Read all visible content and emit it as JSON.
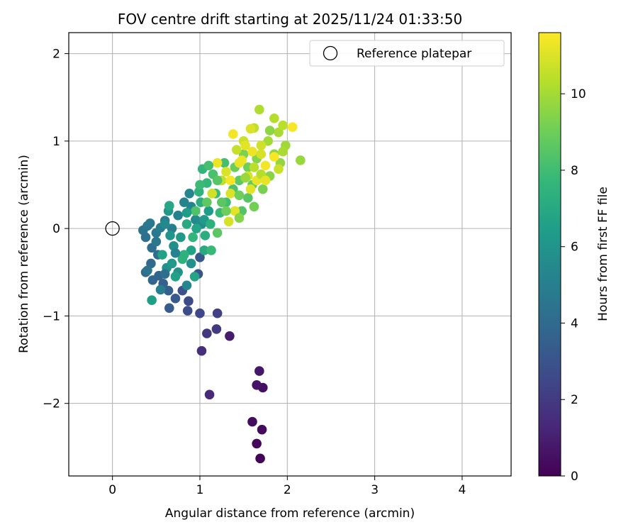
{
  "chart_data": {
    "type": "scatter",
    "title": "FOV centre drift starting at 2025/11/24 01:33:50",
    "xlabel": "Angular distance from reference (arcmin)",
    "ylabel": "Rotation from reference (arcmin)",
    "xlim": [
      -0.5,
      4.56
    ],
    "ylim": [
      -2.83,
      2.24
    ],
    "xticks": [
      0,
      1,
      2,
      3,
      4
    ],
    "yticks": [
      -2,
      -1,
      0,
      1,
      2
    ],
    "grid": true,
    "legend": {
      "position": "top-right",
      "entries": [
        "Reference platepar"
      ]
    },
    "reference_point": {
      "x": 0,
      "y": 0,
      "label": "Reference platepar"
    },
    "colorbar": {
      "label": "Hours from first FF file",
      "colormap": "viridis",
      "min": 0,
      "max": 11.6,
      "ticks": [
        0,
        2,
        4,
        6,
        8,
        10
      ]
    },
    "points": [
      {
        "x": 1.69,
        "y": -2.63,
        "t": 0.1
      },
      {
        "x": 1.65,
        "y": -2.46,
        "t": 0.2
      },
      {
        "x": 1.71,
        "y": -2.3,
        "t": 0.3
      },
      {
        "x": 1.6,
        "y": -2.21,
        "t": 0.4
      },
      {
        "x": 1.72,
        "y": -1.82,
        "t": 0.5
      },
      {
        "x": 1.65,
        "y": -1.79,
        "t": 0.6
      },
      {
        "x": 1.68,
        "y": -1.63,
        "t": 0.7
      },
      {
        "x": 1.34,
        "y": -1.23,
        "t": 0.9
      },
      {
        "x": 1.11,
        "y": -1.9,
        "t": 1.4
      },
      {
        "x": 1.02,
        "y": -1.4,
        "t": 1.6
      },
      {
        "x": 1.08,
        "y": -1.2,
        "t": 1.9
      },
      {
        "x": 1.19,
        "y": -1.15,
        "t": 2.0
      },
      {
        "x": 1.2,
        "y": -0.97,
        "t": 2.2
      },
      {
        "x": 1.0,
        "y": -0.97,
        "t": 2.5
      },
      {
        "x": 0.87,
        "y": -0.83,
        "t": 2.6
      },
      {
        "x": 0.86,
        "y": -0.94,
        "t": 2.7
      },
      {
        "x": 0.8,
        "y": -0.71,
        "t": 2.9
      },
      {
        "x": 0.98,
        "y": -0.52,
        "t": 3.0
      },
      {
        "x": 1.0,
        "y": -0.33,
        "t": 3.2
      },
      {
        "x": 0.72,
        "y": -0.8,
        "t": 3.3
      },
      {
        "x": 0.65,
        "y": -0.91,
        "t": 3.4
      },
      {
        "x": 0.64,
        "y": -0.71,
        "t": 3.5
      },
      {
        "x": 0.58,
        "y": -0.63,
        "t": 3.6
      },
      {
        "x": 0.53,
        "y": -0.54,
        "t": 3.7
      },
      {
        "x": 0.46,
        "y": -0.59,
        "t": 3.8
      },
      {
        "x": 0.38,
        "y": -0.5,
        "t": 3.9
      },
      {
        "x": 0.44,
        "y": -0.4,
        "t": 4.0
      },
      {
        "x": 0.52,
        "y": -0.3,
        "t": 4.1
      },
      {
        "x": 0.45,
        "y": -0.22,
        "t": 4.2
      },
      {
        "x": 0.38,
        "y": -0.1,
        "t": 4.3
      },
      {
        "x": 0.35,
        "y": -0.02,
        "t": 4.4
      },
      {
        "x": 0.4,
        "y": 0.03,
        "t": 4.5
      },
      {
        "x": 0.43,
        "y": 0.06,
        "t": 4.6
      },
      {
        "x": 0.5,
        "y": -0.05,
        "t": 4.7
      },
      {
        "x": 0.55,
        "y": 0.01,
        "t": 4.8
      },
      {
        "x": 0.6,
        "y": 0.09,
        "t": 4.9
      },
      {
        "x": 0.68,
        "y": 0.0,
        "t": 5.0
      },
      {
        "x": 0.75,
        "y": 0.15,
        "t": 5.1
      },
      {
        "x": 0.82,
        "y": 0.3,
        "t": 5.2
      },
      {
        "x": 0.9,
        "y": 0.25,
        "t": 5.3
      },
      {
        "x": 0.88,
        "y": 0.4,
        "t": 5.4
      },
      {
        "x": 0.95,
        "y": 0.1,
        "t": 5.5
      },
      {
        "x": 1.02,
        "y": 0.05,
        "t": 5.6
      },
      {
        "x": 0.7,
        "y": -0.2,
        "t": 5.7
      },
      {
        "x": 0.62,
        "y": -0.45,
        "t": 5.8
      },
      {
        "x": 0.75,
        "y": -0.5,
        "t": 5.9
      },
      {
        "x": 0.66,
        "y": -0.08,
        "t": 6.0
      },
      {
        "x": 0.64,
        "y": 0.2,
        "t": 6.1
      },
      {
        "x": 0.78,
        "y": -0.1,
        "t": 6.2
      },
      {
        "x": 1.05,
        "y": 0.1,
        "t": 6.3
      },
      {
        "x": 1.1,
        "y": 0.2,
        "t": 6.4
      },
      {
        "x": 0.45,
        "y": -0.82,
        "t": 6.5
      },
      {
        "x": 0.57,
        "y": -0.3,
        "t": 6.6
      },
      {
        "x": 0.9,
        "y": -0.25,
        "t": 6.7
      },
      {
        "x": 0.94,
        "y": -0.55,
        "t": 6.8
      },
      {
        "x": 0.65,
        "y": 0.26,
        "t": 6.9
      },
      {
        "x": 0.85,
        "y": 0.05,
        "t": 7.0
      },
      {
        "x": 1.05,
        "y": -0.25,
        "t": 7.0
      },
      {
        "x": 1.01,
        "y": 0.3,
        "t": 7.2
      },
      {
        "x": 1.12,
        "y": 0.05,
        "t": 7.3
      },
      {
        "x": 0.82,
        "y": -0.3,
        "t": 7.4
      },
      {
        "x": 0.99,
        "y": 0.42,
        "t": 7.5
      },
      {
        "x": 1.03,
        "y": 0.68,
        "t": 7.6
      },
      {
        "x": 1.08,
        "y": 0.52,
        "t": 7.7
      },
      {
        "x": 1.23,
        "y": 0.18,
        "t": 7.8
      },
      {
        "x": 1.18,
        "y": 0.4,
        "t": 7.9
      },
      {
        "x": 1.3,
        "y": 0.3,
        "t": 8.0
      },
      {
        "x": 1.28,
        "y": 0.75,
        "t": 8.1
      },
      {
        "x": 1.15,
        "y": 0.62,
        "t": 8.2
      },
      {
        "x": 1.38,
        "y": 0.45,
        "t": 8.3
      },
      {
        "x": 1.48,
        "y": 0.2,
        "t": 8.4
      },
      {
        "x": 1.55,
        "y": 0.35,
        "t": 8.5
      },
      {
        "x": 1.2,
        "y": -0.05,
        "t": 8.6
      },
      {
        "x": 1.45,
        "y": 0.55,
        "t": 8.7
      },
      {
        "x": 1.6,
        "y": 0.5,
        "t": 8.8
      },
      {
        "x": 1.4,
        "y": 0.7,
        "t": 8.9
      },
      {
        "x": 1.55,
        "y": 0.7,
        "t": 9.0
      },
      {
        "x": 1.62,
        "y": 0.25,
        "t": 9.1
      },
      {
        "x": 1.72,
        "y": 0.45,
        "t": 9.2
      },
      {
        "x": 1.5,
        "y": 0.85,
        "t": 9.3
      },
      {
        "x": 1.65,
        "y": 0.8,
        "t": 9.4
      },
      {
        "x": 1.8,
        "y": 0.6,
        "t": 9.5
      },
      {
        "x": 1.85,
        "y": 0.85,
        "t": 9.6
      },
      {
        "x": 1.92,
        "y": 0.75,
        "t": 9.7
      },
      {
        "x": 2.15,
        "y": 0.78,
        "t": 9.8
      },
      {
        "x": 1.98,
        "y": 0.95,
        "t": 9.9
      },
      {
        "x": 1.78,
        "y": 1.0,
        "t": 10.0
      },
      {
        "x": 1.9,
        "y": 1.1,
        "t": 10.1
      },
      {
        "x": 1.68,
        "y": 1.36,
        "t": 10.2
      },
      {
        "x": 1.85,
        "y": 1.26,
        "t": 10.3
      },
      {
        "x": 1.95,
        "y": 1.18,
        "t": 10.4
      },
      {
        "x": 1.62,
        "y": 1.15,
        "t": 10.5
      },
      {
        "x": 1.42,
        "y": 0.9,
        "t": 10.6
      },
      {
        "x": 1.5,
        "y": 1.0,
        "t": 10.7
      },
      {
        "x": 1.7,
        "y": 0.95,
        "t": 10.8
      },
      {
        "x": 1.55,
        "y": 0.6,
        "t": 10.9
      },
      {
        "x": 1.3,
        "y": 0.65,
        "t": 11.0
      },
      {
        "x": 1.35,
        "y": 0.4,
        "t": 11.0
      },
      {
        "x": 1.4,
        "y": 0.2,
        "t": 11.1
      },
      {
        "x": 1.45,
        "y": 0.75,
        "t": 11.2
      },
      {
        "x": 1.6,
        "y": 0.88,
        "t": 11.3
      },
      {
        "x": 1.75,
        "y": 0.72,
        "t": 11.4
      },
      {
        "x": 1.85,
        "y": 0.82,
        "t": 11.5
      },
      {
        "x": 2.06,
        "y": 1.16,
        "t": 11.5
      },
      {
        "x": 1.38,
        "y": 1.08,
        "t": 11.4
      },
      {
        "x": 1.2,
        "y": 0.75,
        "t": 11.3
      },
      {
        "x": 1.65,
        "y": 0.55,
        "t": 11.2
      },
      {
        "x": 1.52,
        "y": 0.95,
        "t": 11.1
      },
      {
        "x": 1.58,
        "y": 1.14,
        "t": 11.0
      },
      {
        "x": 1.33,
        "y": 0.08,
        "t": 10.9
      },
      {
        "x": 1.14,
        "y": 0.4,
        "t": 10.8
      },
      {
        "x": 1.25,
        "y": 0.55,
        "t": 10.5
      },
      {
        "x": 1.7,
        "y": 0.62,
        "t": 10.3
      },
      {
        "x": 1.95,
        "y": 0.88,
        "t": 10.1
      },
      {
        "x": 1.8,
        "y": 1.12,
        "t": 9.6
      },
      {
        "x": 1.45,
        "y": 0.12,
        "t": 9.4
      },
      {
        "x": 1.3,
        "y": 0.2,
        "t": 9.0
      },
      {
        "x": 1.08,
        "y": 0.3,
        "t": 8.7
      },
      {
        "x": 1.2,
        "y": 0.55,
        "t": 8.5
      },
      {
        "x": 0.95,
        "y": 0.2,
        "t": 8.3
      },
      {
        "x": 1.13,
        "y": -0.25,
        "t": 7.8
      },
      {
        "x": 0.92,
        "y": -0.1,
        "t": 7.6
      },
      {
        "x": 0.8,
        "y": -0.35,
        "t": 7.4
      },
      {
        "x": 0.72,
        "y": -0.55,
        "t": 6.6
      },
      {
        "x": 0.68,
        "y": -0.4,
        "t": 6.2
      },
      {
        "x": 0.9,
        "y": -0.4,
        "t": 5.8
      },
      {
        "x": 0.85,
        "y": -0.65,
        "t": 5.4
      },
      {
        "x": 0.55,
        "y": -0.7,
        "t": 4.9
      },
      {
        "x": 0.4,
        "y": -0.48,
        "t": 4.4
      },
      {
        "x": 0.6,
        "y": -0.52,
        "t": 4.2
      },
      {
        "x": 0.72,
        "y": -0.28,
        "t": 5.2
      },
      {
        "x": 0.5,
        "y": -0.15,
        "t": 4.6
      },
      {
        "x": 0.6,
        "y": 0.05,
        "t": 5.5
      },
      {
        "x": 0.85,
        "y": 0.18,
        "t": 6.4
      },
      {
        "x": 0.96,
        "y": 0.0,
        "t": 6.8
      },
      {
        "x": 1.06,
        "y": -0.08,
        "t": 7.2
      },
      {
        "x": 1.0,
        "y": 0.5,
        "t": 7.9
      },
      {
        "x": 1.1,
        "y": 0.72,
        "t": 8.1
      },
      {
        "x": 1.25,
        "y": 0.3,
        "t": 8.6
      },
      {
        "x": 1.45,
        "y": 0.38,
        "t": 9.0
      },
      {
        "x": 1.52,
        "y": 0.58,
        "t": 9.8
      },
      {
        "x": 1.62,
        "y": 0.7,
        "t": 10.4
      },
      {
        "x": 1.7,
        "y": 0.85,
        "t": 10.9
      },
      {
        "x": 1.58,
        "y": 0.45,
        "t": 11.1
      },
      {
        "x": 1.48,
        "y": 0.78,
        "t": 11.3
      },
      {
        "x": 1.35,
        "y": 0.55,
        "t": 11.5
      },
      {
        "x": 1.75,
        "y": 0.55,
        "t": 11.2
      },
      {
        "x": 1.9,
        "y": 0.68,
        "t": 10.7
      }
    ]
  }
}
